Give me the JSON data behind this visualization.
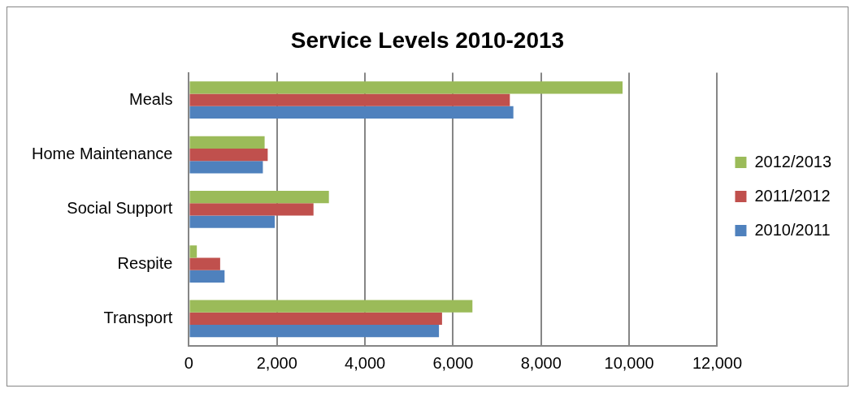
{
  "chart_data": {
    "type": "bar",
    "orientation": "horizontal",
    "title": "Service Levels 2010-2013",
    "categories": [
      "Meals",
      "Home Maintenance",
      "Social Support",
      "Respite",
      "Transport"
    ],
    "series": [
      {
        "name": "2012/2013",
        "color": "#9bbb59",
        "values": [
          9850,
          1720,
          3180,
          180,
          6440
        ]
      },
      {
        "name": "2011/2012",
        "color": "#c0504d",
        "values": [
          7290,
          1790,
          2830,
          710,
          5750
        ]
      },
      {
        "name": "2010/2011",
        "color": "#4f81bd",
        "values": [
          7370,
          1680,
          1950,
          810,
          5680
        ]
      }
    ],
    "xlim": [
      0,
      12000
    ],
    "xticks": [
      {
        "value": 0,
        "label": "0"
      },
      {
        "value": 2000,
        "label": "2,000"
      },
      {
        "value": 4000,
        "label": "4,000"
      },
      {
        "value": 6000,
        "label": "6,000"
      },
      {
        "value": 8000,
        "label": "8,000"
      },
      {
        "value": 10000,
        "label": "10,000"
      },
      {
        "value": 12000,
        "label": "12,000"
      }
    ],
    "grid": "x",
    "legend": "right"
  }
}
